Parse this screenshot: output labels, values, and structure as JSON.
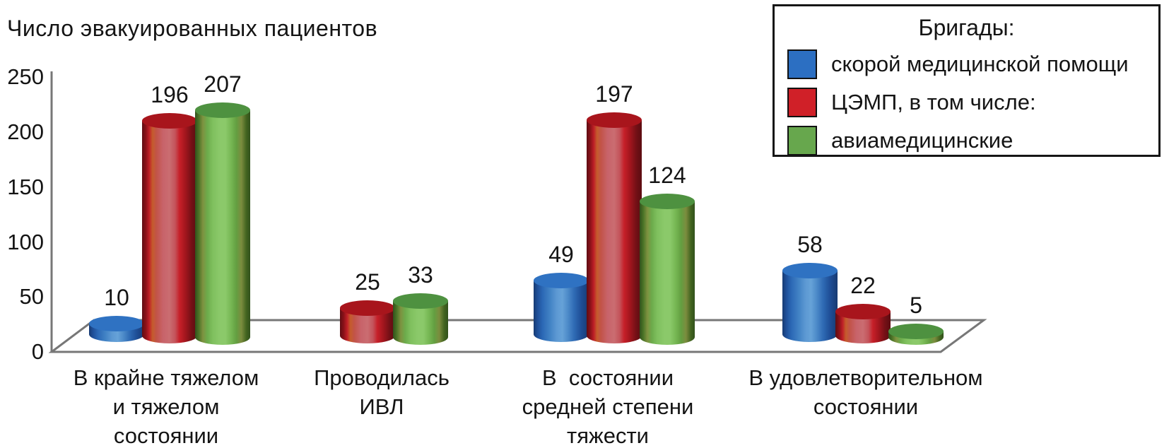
{
  "title": "Число эвакуированных пациентов",
  "legend": {
    "title": "Бригады:",
    "items": [
      {
        "label": "скорой медицинской помощи",
        "color": "#2c6fc2"
      },
      {
        "label": "ЦЭМП, в том числе:",
        "color": "#d02028"
      },
      {
        "label": "авиамедицинские",
        "color": "#67a74d"
      }
    ]
  },
  "chart_data": {
    "type": "bar",
    "variant": "3d-cylinder",
    "title": "Число эвакуированных пациентов",
    "xlabel": "",
    "ylabel": "",
    "ylim": [
      0,
      250
    ],
    "y_ticks": [
      0,
      50,
      100,
      150,
      200,
      250
    ],
    "grid": false,
    "legend_position": "top-right",
    "legend_title": "Бригады:",
    "categories": [
      [
        "В крайне тяжелом",
        "и тяжелом",
        "состоянии"
      ],
      [
        "Проводилась",
        "ИВЛ"
      ],
      [
        "В  состоянии",
        "средней степени",
        "тяжести"
      ],
      [
        "В удовлетворительном",
        "состоянии"
      ]
    ],
    "series": [
      {
        "name": "скорой медицинской помощи",
        "color": "#2c6fc2",
        "values": [
          10,
          null,
          49,
          58
        ]
      },
      {
        "name": "ЦЭМП, в том числе:",
        "color": "#d02028",
        "values": [
          196,
          25,
          197,
          22
        ]
      },
      {
        "name": "авиамедицинские",
        "color": "#67a74d",
        "values": [
          207,
          33,
          124,
          5
        ]
      }
    ]
  }
}
